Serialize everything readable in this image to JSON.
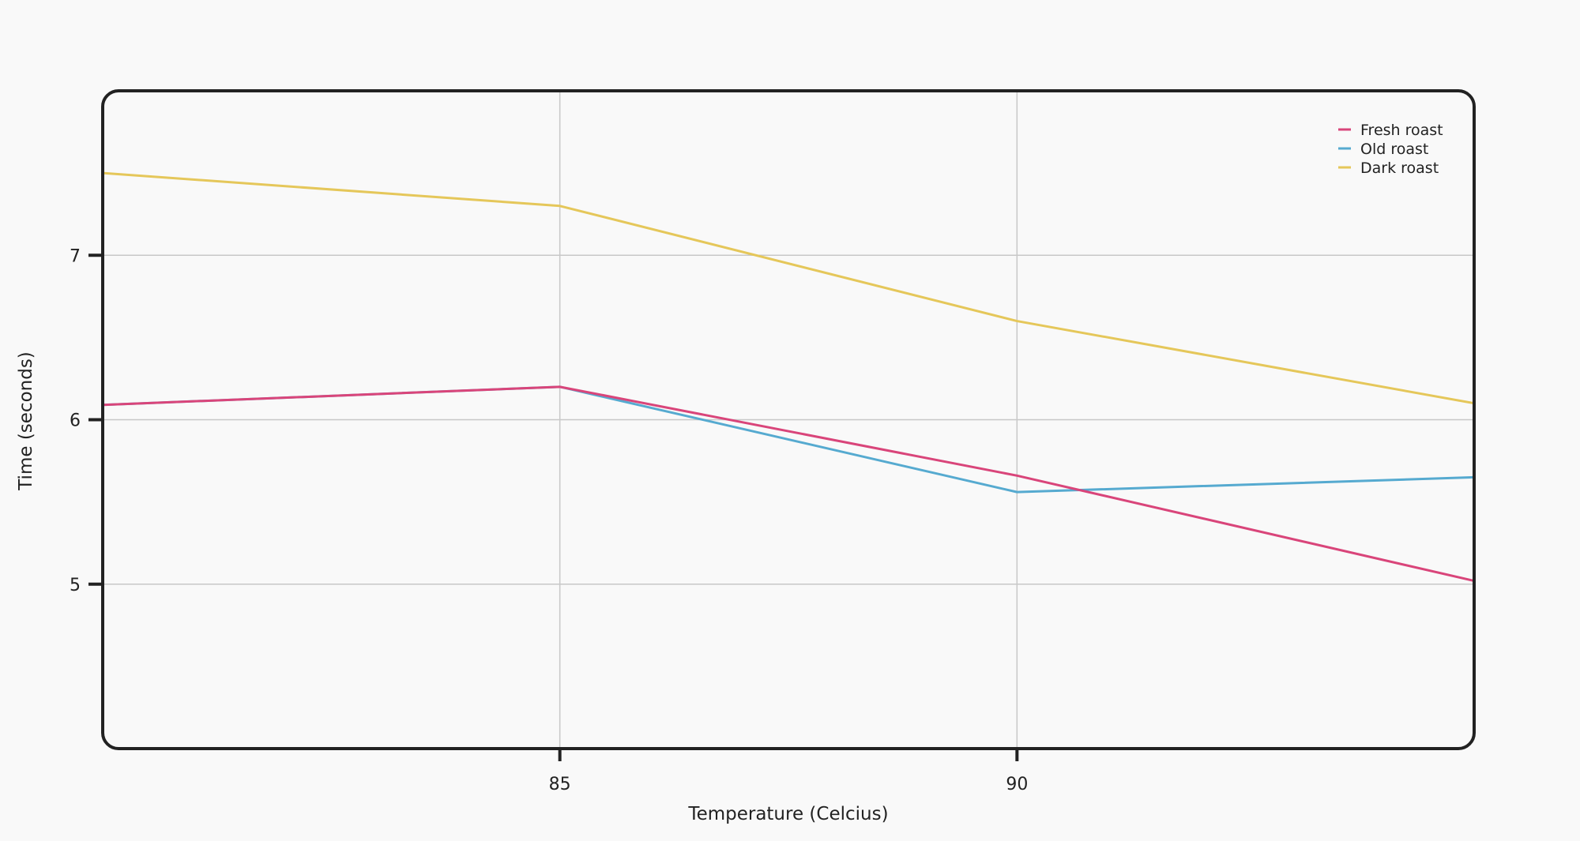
{
  "chart_data": {
    "type": "line",
    "title": "",
    "xlabel": "Temperature (Celcius)",
    "ylabel": "Time (seconds)",
    "x": [
      80,
      85,
      90,
      95
    ],
    "xlim": [
      80,
      95
    ],
    "ylim": [
      4,
      8
    ],
    "xticks": [
      85,
      90
    ],
    "xtick_labels": [
      "85",
      "90"
    ],
    "yticks": [
      5,
      6,
      7
    ],
    "ytick_labels": [
      "5",
      "6",
      "7"
    ],
    "grid": true,
    "legend_position": "top-right",
    "series": [
      {
        "name": "Old roast",
        "color": "#56aad0",
        "values": [
          6.09,
          6.2,
          5.56,
          5.65
        ]
      },
      {
        "name": "Fresh roast",
        "color": "#d9457a",
        "values": [
          6.09,
          6.2,
          5.66,
          5.02
        ]
      },
      {
        "name": "Dark roast",
        "color": "#e5c75a",
        "values": [
          7.5,
          7.3,
          6.6,
          6.1
        ]
      }
    ],
    "legend": [
      "Fresh roast",
      "Old roast",
      "Dark roast"
    ]
  }
}
